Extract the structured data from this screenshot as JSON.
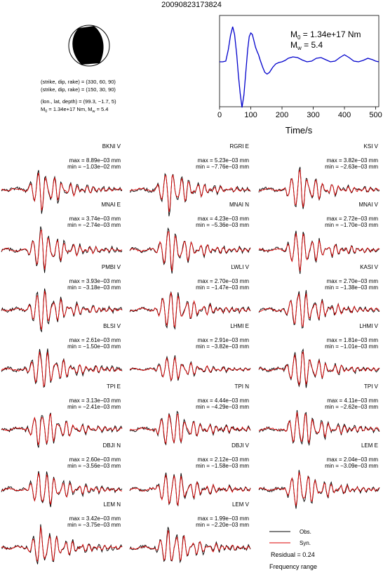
{
  "title": "20090823173824",
  "focal_info": {
    "line1": "(strike, dip, rake) = (330, 60, 90)",
    "line2": "(strike, dip, rake) = (150, 30, 90)",
    "line3": "(lon., lat, depth) = (99.3, −1.7, 5)",
    "line4_m0": "M",
    "line4_rest": " = 1.34e+17 Nm, M",
    "line4_mw": " = 5.4",
    "sub_0": "0",
    "sub_w": "w"
  },
  "stf": {
    "m0_text": " = 1.34e+17 Nm",
    "mw_text": " = 5.4",
    "m_letter": "M",
    "sub0": "0",
    "subw": "w"
  },
  "chart_data": [
    {
      "type": "line",
      "title": "",
      "xlabel": "Time/s",
      "ylabel": "",
      "xlim": [
        0,
        510
      ],
      "xticks": [
        "0",
        "100",
        "200",
        "300",
        "400",
        "500"
      ],
      "series": [
        {
          "color": "#0000cc",
          "x": [
            0,
            10,
            20,
            28,
            35,
            42,
            48,
            55,
            60,
            66,
            72,
            78,
            84,
            90,
            95,
            100,
            105,
            110,
            115,
            120,
            125,
            130,
            138,
            145,
            152,
            160,
            170,
            180,
            190,
            200,
            210,
            220,
            235,
            250,
            265,
            280,
            295,
            310,
            325,
            340,
            355,
            370,
            385,
            400,
            415,
            430,
            445,
            460,
            475,
            490,
            500,
            510
          ],
          "y": [
            0,
            0,
            0.02,
            0.35,
            0.75,
            1.0,
            0.78,
            0.2,
            -0.35,
            -0.9,
            -1.3,
            -0.95,
            -0.3,
            0.35,
            0.72,
            0.82,
            0.78,
            0.6,
            0.42,
            0.3,
            0.2,
            0.05,
            -0.15,
            -0.3,
            -0.35,
            -0.3,
            -0.16,
            -0.06,
            -0.02,
            0,
            0.04,
            0.1,
            0.14,
            0.12,
            0.05,
            0,
            0.02,
            0.1,
            0.12,
            0.06,
            0,
            0.02,
            0.12,
            0.2,
            0.12,
            0.02,
            0,
            0.04,
            0.1,
            0.06,
            0.02,
            0
          ]
        }
      ]
    },
    {
      "type": "line",
      "title": "Waveform comparison",
      "legend": {
        "position": "bottom-right",
        "entries": [
          {
            "name": "Obs.",
            "color": "#000000"
          },
          {
            "name": "Syn.",
            "color": "#dd0000"
          }
        ]
      },
      "residual_text": "Residual = 0.24",
      "freq_text": "Frequency range",
      "stations": [
        {
          "name": "BKNI V",
          "max": "max = 8.89e−03 mm",
          "min": "min = −1.03e−02 mm"
        },
        {
          "name": "RGRI E",
          "max": "max = 5.23e−03 mm",
          "min": "min = −7.76e−03 mm"
        },
        {
          "name": "KSI V",
          "max": "max = 3.82e−03 mm",
          "min": "min = −2.63e−03 mm"
        },
        {
          "name": "MNAI E",
          "max": "max = 3.74e−03 mm",
          "min": "min = −2.74e−03 mm"
        },
        {
          "name": "MNAI N",
          "max": "max = 4.23e−03 mm",
          "min": "min = −5.36e−03 mm"
        },
        {
          "name": "MNAI V",
          "max": "max = 2.72e−03 mm",
          "min": "min = −1.70e−03 mm"
        },
        {
          "name": "PMBI V",
          "max": "max = 3.93e−03 mm",
          "min": "min = −3.18e−03 mm"
        },
        {
          "name": "LWLI V",
          "max": "max = 2.70e−03 mm",
          "min": "min = −1.47e−03 mm"
        },
        {
          "name": "KASI V",
          "max": "max = 2.70e−03 mm",
          "min": "min = −1.38e−03 mm"
        },
        {
          "name": "BLSI V",
          "max": "max = 2.61e−03 mm",
          "min": "min = −1.50e−03 mm"
        },
        {
          "name": "LHMI E",
          "max": "max = 2.91e−03 mm",
          "min": "min = −3.82e−03 mm"
        },
        {
          "name": "LHMI V",
          "max": "max = 1.81e−03 mm",
          "min": "min = −1.01e−03 mm"
        },
        {
          "name": "TPI E",
          "max": "max = 3.13e−03 mm",
          "min": "min = −2.41e−03 mm"
        },
        {
          "name": "TPI N",
          "max": "max = 4.44e−03 mm",
          "min": "min = −4.29e−03 mm"
        },
        {
          "name": "TPI V",
          "max": "max = 4.11e−03 mm",
          "min": "min = −2.62e−03 mm"
        },
        {
          "name": "DBJI N",
          "max": "max = 2.60e−03 mm",
          "min": "min = −3.56e−03 mm"
        },
        {
          "name": "DBJI V",
          "max": "max = 2.12e−03 mm",
          "min": "min = −1.58e−03 mm"
        },
        {
          "name": "LEM E",
          "max": "max = 2.04e−03 mm",
          "min": "min = −3.09e−03 mm"
        },
        {
          "name": "LEM N",
          "max": "max = 3.42e−03 mm",
          "min": "min = −3.75e−03 mm"
        },
        {
          "name": "LEM V",
          "max": "max = 1.99e−03 mm",
          "min": "min = −2.20e−03 mm"
        }
      ]
    }
  ]
}
